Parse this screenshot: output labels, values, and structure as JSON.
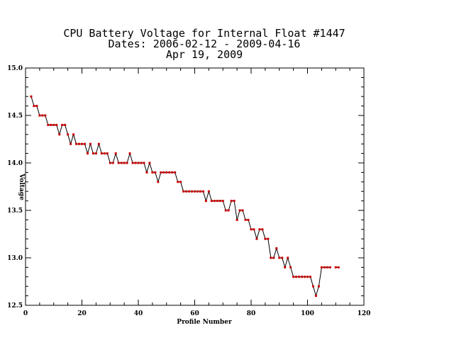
{
  "chart_data": {
    "type": "line",
    "title_lines": [
      "CPU Battery Voltage for Internal Float #1447",
      "Dates:  2006-02-12 -  2009-04-16",
      "Apr 19, 2009"
    ],
    "xlabel": "Profile Number",
    "ylabel": "Voltage",
    "xlim": [
      0,
      120
    ],
    "ylim": [
      12.5,
      15.0
    ],
    "xticks": [
      0,
      20,
      40,
      60,
      80,
      100,
      120
    ],
    "yticks": [
      12.5,
      13.0,
      13.5,
      14.0,
      14.5,
      15.0
    ],
    "xtick_labels": [
      "0",
      "20",
      "40",
      "60",
      "80",
      "100",
      "120"
    ],
    "ytick_labels": [
      "12.5",
      "13.0",
      "13.5",
      "14.0",
      "14.5",
      "15.0"
    ],
    "grid": false,
    "line_color": "#000000",
    "marker_color": "#cc0000",
    "series": [
      {
        "x": [
          2,
          3,
          4,
          5,
          6,
          7,
          8,
          9,
          10,
          11,
          12,
          13,
          14,
          15,
          16,
          17,
          18,
          19,
          20,
          21,
          22,
          23,
          24,
          25,
          26,
          27,
          28,
          29,
          30,
          31,
          32,
          33,
          34,
          35,
          36,
          37,
          38,
          39,
          40,
          41,
          42,
          43,
          44,
          45,
          46,
          47,
          48,
          49,
          50,
          51,
          52,
          53,
          54,
          55,
          56,
          57,
          58,
          59,
          60,
          61,
          62,
          63,
          64,
          65,
          66,
          67,
          68,
          69,
          70,
          71,
          72,
          73,
          74,
          75,
          76,
          77,
          78,
          79,
          80,
          81,
          82,
          83,
          84,
          85,
          86,
          87,
          88,
          89,
          90,
          91,
          92,
          93,
          94,
          95,
          96,
          97,
          98,
          99,
          100,
          101,
          102,
          103,
          104,
          105,
          106,
          107,
          108,
          109,
          110,
          111
        ],
        "values": [
          14.7,
          14.6,
          14.6,
          14.5,
          14.5,
          14.5,
          14.4,
          14.4,
          14.4,
          14.4,
          14.3,
          14.4,
          14.4,
          14.3,
          14.2,
          14.3,
          14.2,
          14.2,
          14.2,
          14.2,
          14.1,
          14.2,
          14.1,
          14.1,
          14.2,
          14.1,
          14.1,
          14.1,
          14.0,
          14.0,
          14.1,
          14.0,
          14.0,
          14.0,
          14.0,
          14.1,
          14.0,
          14.0,
          14.0,
          14.0,
          14.0,
          13.9,
          14.0,
          13.9,
          13.9,
          13.8,
          13.9,
          13.9,
          13.9,
          13.9,
          13.9,
          13.9,
          13.8,
          13.8,
          13.7,
          13.7,
          13.7,
          13.7,
          13.7,
          13.7,
          13.7,
          13.7,
          13.6,
          13.7,
          13.6,
          13.6,
          13.6,
          13.6,
          13.6,
          13.5,
          13.5,
          13.6,
          13.6,
          13.4,
          13.5,
          13.5,
          13.4,
          13.4,
          13.3,
          13.3,
          13.2,
          13.3,
          13.3,
          13.2,
          13.2,
          13.0,
          13.0,
          13.1,
          13.0,
          13.0,
          12.9,
          13.0,
          12.9,
          12.8,
          12.8,
          12.8,
          12.8,
          12.8,
          12.8,
          12.8,
          12.7,
          12.6,
          12.7,
          12.9,
          12.9,
          12.9,
          12.9,
          null,
          12.9,
          12.9
        ]
      }
    ]
  }
}
